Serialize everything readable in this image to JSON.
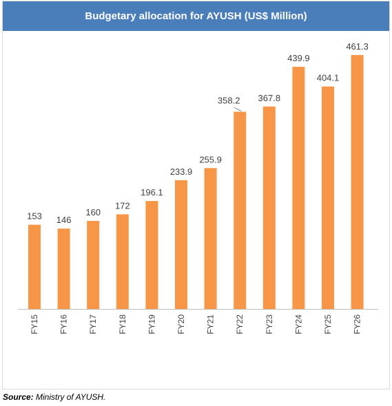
{
  "chart_data": {
    "type": "bar",
    "title": "Budgetary allocation for AYUSH (US$ Million)",
    "categories": [
      "FY15",
      "FY16",
      "FY17",
      "FY18",
      "FY19",
      "FY20",
      "FY21",
      "FY22",
      "FY23",
      "FY24",
      "FY25",
      "FY26"
    ],
    "values": [
      153,
      146,
      160,
      172,
      196.1,
      233.9,
      255.9,
      358.2,
      367.8,
      439.9,
      404.1,
      461.3
    ],
    "data_labels": [
      "153",
      "146",
      "160",
      "172",
      "196.1",
      "233.9",
      "255.9",
      "358.2",
      "367.8",
      "439.9",
      "404.1",
      "461.3"
    ],
    "ylim": [
      0,
      500
    ],
    "grid": false,
    "legend": "none",
    "bar_color": "#f79646",
    "title_bg_color": "#4a7ebb"
  },
  "source": {
    "label": "Source:",
    "text": " Ministry of AYUSH."
  }
}
